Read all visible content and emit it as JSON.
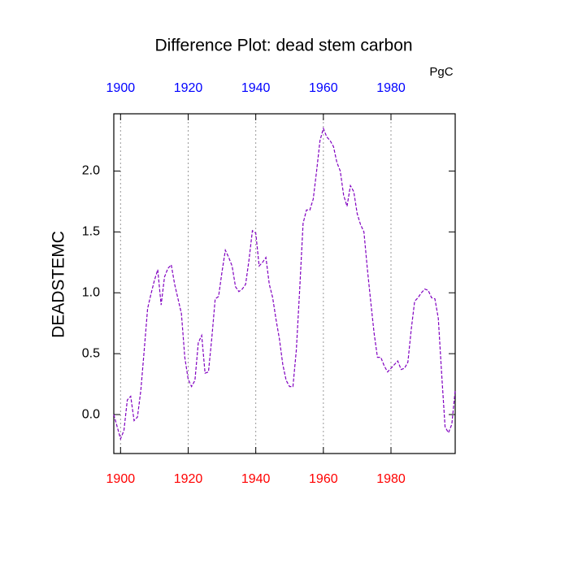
{
  "chart_data": {
    "type": "line",
    "title": "Difference Plot: dead stem carbon",
    "units_label": "PgC",
    "ylabel": "DEADSTEMC",
    "x": [
      1898,
      1899,
      1900,
      1901,
      1902,
      1903,
      1904,
      1905,
      1906,
      1907,
      1908,
      1909,
      1910,
      1911,
      1912,
      1913,
      1914,
      1915,
      1916,
      1917,
      1918,
      1919,
      1920,
      1921,
      1922,
      1923,
      1924,
      1925,
      1926,
      1927,
      1928,
      1929,
      1930,
      1931,
      1932,
      1933,
      1934,
      1935,
      1936,
      1937,
      1938,
      1939,
      1940,
      1941,
      1942,
      1943,
      1944,
      1945,
      1946,
      1947,
      1948,
      1949,
      1950,
      1951,
      1952,
      1953,
      1954,
      1955,
      1956,
      1957,
      1958,
      1959,
      1960,
      1961,
      1962,
      1963,
      1964,
      1965,
      1966,
      1967,
      1968,
      1969,
      1970,
      1971,
      1972,
      1973,
      1974,
      1975,
      1976,
      1977,
      1978,
      1979,
      1980,
      1981,
      1982,
      1983,
      1984,
      1985,
      1986,
      1987,
      1988,
      1989,
      1990,
      1991,
      1992,
      1993,
      1994,
      1995,
      1996,
      1997,
      1998,
      1999
    ],
    "series": [
      {
        "name": "DEADSTEMC",
        "color": "#8000c0",
        "values": [
          0.0,
          -0.1,
          -0.2,
          -0.13,
          0.12,
          0.15,
          -0.05,
          -0.02,
          0.2,
          0.53,
          0.87,
          0.99,
          1.1,
          1.19,
          0.9,
          1.13,
          1.2,
          1.23,
          1.07,
          0.95,
          0.83,
          0.47,
          0.29,
          0.23,
          0.28,
          0.59,
          0.65,
          0.34,
          0.35,
          0.63,
          0.95,
          0.97,
          1.17,
          1.35,
          1.29,
          1.22,
          1.05,
          1.01,
          1.03,
          1.07,
          1.27,
          1.51,
          1.49,
          1.22,
          1.25,
          1.29,
          1.07,
          0.96,
          0.78,
          0.62,
          0.41,
          0.28,
          0.23,
          0.23,
          0.53,
          1.03,
          1.57,
          1.68,
          1.68,
          1.77,
          2.0,
          2.25,
          2.35,
          2.28,
          2.25,
          2.2,
          2.07,
          2.0,
          1.8,
          1.71,
          1.88,
          1.83,
          1.65,
          1.56,
          1.5,
          1.2,
          0.93,
          0.67,
          0.47,
          0.47,
          0.4,
          0.35,
          0.38,
          0.41,
          0.44,
          0.37,
          0.38,
          0.43,
          0.7,
          0.93,
          0.96,
          1.0,
          1.03,
          1.02,
          0.96,
          0.95,
          0.79,
          0.33,
          -0.1,
          -0.15,
          -0.08,
          0.2
        ]
      }
    ],
    "xlim": [
      1898,
      1999
    ],
    "xticks": [
      1900,
      1920,
      1940,
      1960,
      1980
    ],
    "ylim": [
      -0.32,
      2.47
    ],
    "yticks": [
      {
        "value": 0,
        "label": "0.0"
      },
      0.5,
      {
        "value": 1,
        "label": "1.0"
      },
      1.5,
      {
        "value": 2,
        "label": "2.0"
      }
    ],
    "grid": "x",
    "xtick_label_color": "#ff0000",
    "x2tick_label_color": "#0000ff"
  }
}
